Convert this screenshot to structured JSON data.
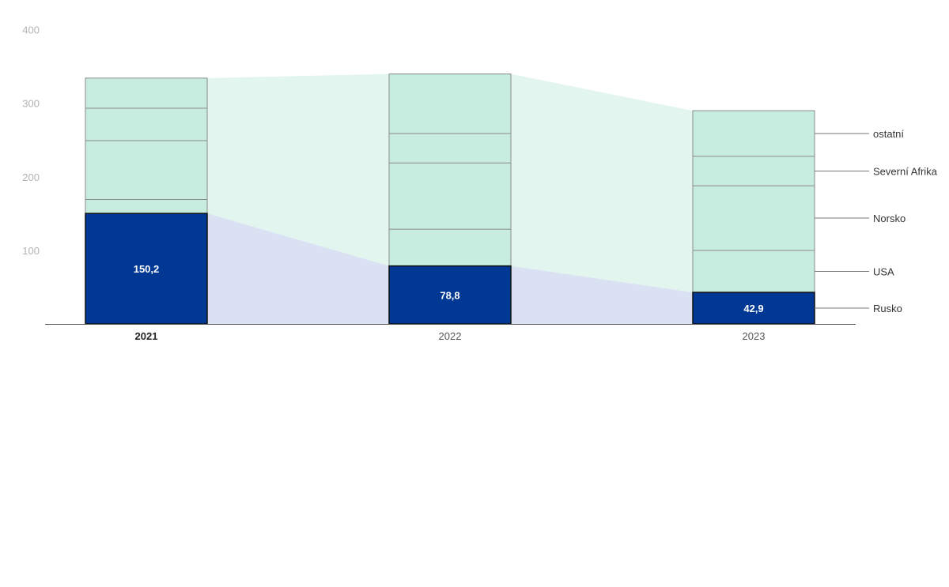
{
  "chart_data": {
    "type": "bar",
    "stacked": true,
    "categories": [
      "2021",
      "2022",
      "2023"
    ],
    "highlighted_category": "2021",
    "yticks": [
      100,
      200,
      300,
      400
    ],
    "ylim": [
      0,
      400
    ],
    "series": [
      {
        "name": "Rusko",
        "values": [
          150.2,
          78.8,
          42.9
        ],
        "labels": [
          "150,2",
          "78,8",
          "42,9"
        ],
        "color": "#003893"
      },
      {
        "name": "USA",
        "values": [
          19,
          50,
          57
        ]
      },
      {
        "name": "Norsko",
        "values": [
          80,
          90,
          88
        ]
      },
      {
        "name": "Severní Afrika",
        "values": [
          44,
          40,
          40
        ]
      },
      {
        "name": "ostatní",
        "values": [
          41,
          81,
          62
        ]
      }
    ],
    "colors": {
      "bar_fill": "#c6ede0",
      "band_fill": "#e2f6ef",
      "russia_band_fill": "#d9e1f3",
      "russia": "#003893",
      "axis": "#555555",
      "segment_line": "#8a8a8a"
    }
  }
}
